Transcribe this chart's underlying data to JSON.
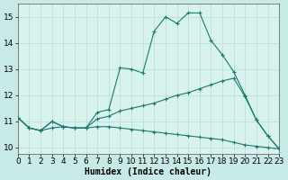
{
  "line1_x": [
    0,
    1,
    2,
    3,
    4,
    5,
    6,
    7,
    8,
    9,
    10,
    11,
    12,
    13,
    14,
    15,
    16,
    17,
    18,
    19,
    20,
    21,
    22,
    23
  ],
  "line1_y": [
    11.15,
    10.75,
    10.65,
    11.0,
    10.8,
    10.75,
    10.75,
    11.35,
    11.45,
    13.05,
    13.0,
    12.85,
    14.45,
    15.0,
    14.75,
    15.15,
    15.15,
    14.1,
    13.55,
    12.9,
    12.0,
    11.05,
    10.45,
    9.95
  ],
  "line2_x": [
    0,
    1,
    2,
    3,
    4,
    5,
    6,
    7,
    8,
    9,
    10,
    11,
    12,
    13,
    14,
    15,
    16,
    17,
    18,
    19,
    20,
    21,
    22,
    23
  ],
  "line2_y": [
    11.15,
    10.75,
    10.65,
    11.0,
    10.8,
    10.75,
    10.75,
    11.1,
    11.2,
    11.4,
    11.5,
    11.6,
    11.7,
    11.85,
    12.0,
    12.1,
    12.25,
    12.4,
    12.55,
    12.65,
    11.95,
    11.05,
    10.45,
    9.95
  ],
  "line3_x": [
    0,
    1,
    2,
    3,
    4,
    5,
    6,
    7,
    8,
    9,
    10,
    11,
    12,
    13,
    14,
    15,
    16,
    17,
    18,
    19,
    20,
    21,
    22,
    23
  ],
  "line3_y": [
    11.15,
    10.75,
    10.65,
    10.75,
    10.8,
    10.75,
    10.75,
    10.8,
    10.8,
    10.75,
    10.7,
    10.65,
    10.6,
    10.55,
    10.5,
    10.45,
    10.4,
    10.35,
    10.3,
    10.2,
    10.1,
    10.05,
    10.0,
    9.95
  ],
  "line_color": "#1a7a6e",
  "bg_color": "#c8eae6",
  "plot_bg": "#d8f2ee",
  "grid_color_major": "#b8ddd9",
  "grid_color_minor": "#cce8e4",
  "xlabel": "Humidex (Indice chaleur)",
  "xlim": [
    0,
    23
  ],
  "ylim": [
    9.75,
    15.5
  ],
  "xticks": [
    0,
    1,
    2,
    3,
    4,
    5,
    6,
    7,
    8,
    9,
    10,
    11,
    12,
    13,
    14,
    15,
    16,
    17,
    18,
    19,
    20,
    21,
    22,
    23
  ],
  "yticks": [
    10,
    11,
    12,
    13,
    14,
    15
  ],
  "xlabel_fontsize": 7,
  "tick_fontsize": 6.5,
  "marker_size": 3,
  "line_width": 0.8
}
